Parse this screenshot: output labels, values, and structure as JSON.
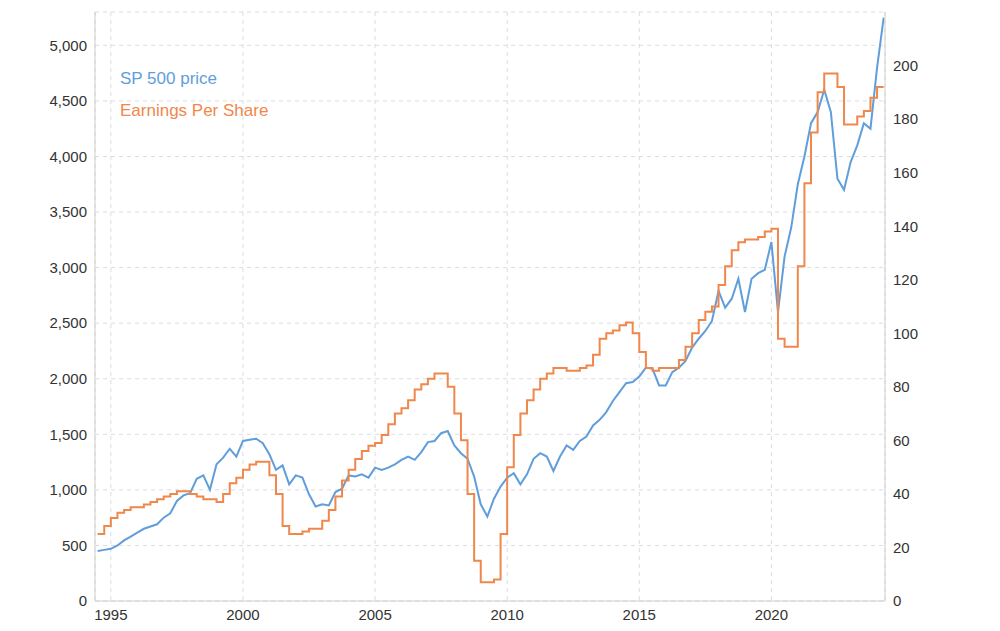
{
  "chart_data": {
    "type": "line",
    "x": [
      1994.5,
      1994.75,
      1995,
      1995.25,
      1995.5,
      1995.75,
      1996,
      1996.25,
      1996.5,
      1996.75,
      1997,
      1997.25,
      1997.5,
      1997.75,
      1998,
      1998.25,
      1998.5,
      1998.75,
      1999,
      1999.25,
      1999.5,
      1999.75,
      2000,
      2000.25,
      2000.5,
      2000.75,
      2001,
      2001.25,
      2001.5,
      2001.75,
      2002,
      2002.25,
      2002.5,
      2002.75,
      2003,
      2003.25,
      2003.5,
      2003.75,
      2004,
      2004.25,
      2004.5,
      2004.75,
      2005,
      2005.25,
      2005.5,
      2005.75,
      2006,
      2006.25,
      2006.5,
      2006.75,
      2007,
      2007.25,
      2007.5,
      2007.75,
      2008,
      2008.25,
      2008.5,
      2008.75,
      2009,
      2009.25,
      2009.5,
      2009.75,
      2010,
      2010.25,
      2010.5,
      2010.75,
      2011,
      2011.25,
      2011.5,
      2011.75,
      2012,
      2012.25,
      2012.5,
      2012.75,
      2013,
      2013.25,
      2013.5,
      2013.75,
      2014,
      2014.25,
      2014.5,
      2014.75,
      2015,
      2015.25,
      2015.5,
      2015.75,
      2016,
      2016.25,
      2016.5,
      2016.75,
      2017,
      2017.25,
      2017.5,
      2017.75,
      2018,
      2018.25,
      2018.5,
      2018.75,
      2019,
      2019.25,
      2019.5,
      2019.75,
      2020,
      2020.25,
      2020.5,
      2020.75,
      2021,
      2021.25,
      2021.5,
      2021.75,
      2022,
      2022.25,
      2022.5,
      2022.75,
      2023,
      2023.25,
      2023.5,
      2023.75,
      2024,
      2024.25
    ],
    "series": [
      {
        "name": "SP 500 price",
        "color": "#5f9edb",
        "line_style": "solid",
        "values": [
          450,
          460,
          470,
          500,
          545,
          580,
          615,
          650,
          670,
          690,
          750,
          790,
          900,
          950,
          970,
          1100,
          1130,
          1000,
          1230,
          1290,
          1370,
          1300,
          1440,
          1450,
          1460,
          1420,
          1320,
          1180,
          1220,
          1050,
          1130,
          1110,
          960,
          850,
          870,
          860,
          980,
          1010,
          1130,
          1120,
          1140,
          1110,
          1200,
          1180,
          1200,
          1230,
          1270,
          1300,
          1270,
          1340,
          1430,
          1440,
          1510,
          1530,
          1400,
          1330,
          1280,
          1120,
          870,
          760,
          920,
          1030,
          1110,
          1150,
          1050,
          1140,
          1280,
          1330,
          1300,
          1170,
          1300,
          1400,
          1360,
          1440,
          1480,
          1580,
          1630,
          1700,
          1800,
          1880,
          1960,
          1970,
          2020,
          2100,
          2090,
          1940,
          1940,
          2060,
          2100,
          2160,
          2280,
          2360,
          2430,
          2520,
          2790,
          2640,
          2720,
          2900,
          2600,
          2900,
          2950,
          2980,
          3230,
          2600,
          3100,
          3360,
          3750,
          4000,
          4300,
          4400,
          4600,
          4400,
          3800,
          3700,
          3950,
          4100,
          4300,
          4250,
          4800,
          5250
        ]
      },
      {
        "name": "Earnings Per Share",
        "color": "#f0874b",
        "line_style": "step",
        "axis": "y2",
        "values": [
          25,
          28,
          31,
          33,
          34,
          35,
          35,
          36,
          37,
          38,
          39,
          40,
          41,
          41,
          40,
          39,
          38,
          38,
          37,
          40,
          44,
          46,
          49,
          51,
          52,
          52,
          47,
          40,
          28,
          25,
          25,
          26,
          27,
          27,
          30,
          34,
          39,
          45,
          49,
          53,
          56,
          58,
          59,
          62,
          66,
          70,
          72,
          75,
          79,
          81,
          83,
          85,
          85,
          80,
          70,
          60,
          40,
          15,
          7,
          7,
          8,
          25,
          50,
          62,
          70,
          75,
          79,
          83,
          85,
          87,
          87,
          86,
          86,
          87,
          88,
          92,
          98,
          100,
          101,
          103,
          104,
          100,
          93,
          87,
          86,
          87,
          87,
          87,
          90,
          95,
          100,
          105,
          108,
          110,
          118,
          125,
          131,
          134,
          135,
          135,
          136,
          138,
          139,
          98,
          95,
          95,
          125,
          156,
          175,
          190,
          197,
          197,
          192,
          178,
          178,
          181,
          183,
          188,
          192,
          192
        ]
      }
    ],
    "xlim": [
      1994.4,
      2024.3
    ],
    "xticks": [
      1995,
      2000,
      2005,
      2010,
      2015,
      2020
    ],
    "ylim": [
      0,
      5300
    ],
    "yticks": [
      0,
      500,
      {
        "value": 1000,
        "label": "1,000"
      },
      {
        "value": 1500,
        "label": "1,500"
      },
      {
        "value": 2000,
        "label": "2,000"
      },
      {
        "value": 2500,
        "label": "2,500"
      },
      {
        "value": 3000,
        "label": "3,000"
      },
      {
        "value": 3500,
        "label": "3,500"
      },
      {
        "value": 4000,
        "label": "4,000"
      },
      {
        "value": 4500,
        "label": "4,500"
      },
      {
        "value": 5000,
        "label": "5,000"
      }
    ],
    "y2lim": [
      0,
      220
    ],
    "y2ticks": [
      0,
      20,
      40,
      60,
      80,
      100,
      120,
      140,
      160,
      180,
      200
    ],
    "grid": true,
    "legend": "upper left"
  }
}
